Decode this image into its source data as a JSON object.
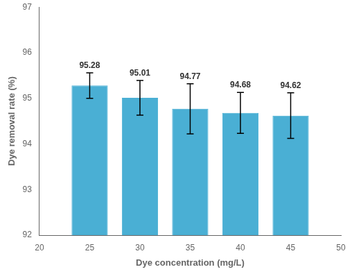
{
  "chart_data": {
    "type": "bar",
    "x": [
      25,
      30,
      35,
      40,
      45
    ],
    "values": [
      95.28,
      95.01,
      94.77,
      94.68,
      94.62
    ],
    "errors": [
      0.28,
      0.38,
      0.55,
      0.45,
      0.5
    ],
    "color": "#4aafd4",
    "xlabel": "Dye concentration (mg/L)",
    "ylabel": "Dye removal rate (%)",
    "xlim": [
      20,
      50
    ],
    "xticks": [
      20,
      25,
      30,
      35,
      40,
      45,
      50
    ],
    "ylim": [
      92,
      97
    ],
    "yticks": [
      92,
      93,
      94,
      95,
      96,
      97
    ],
    "grid": false,
    "data_labels": true
  }
}
